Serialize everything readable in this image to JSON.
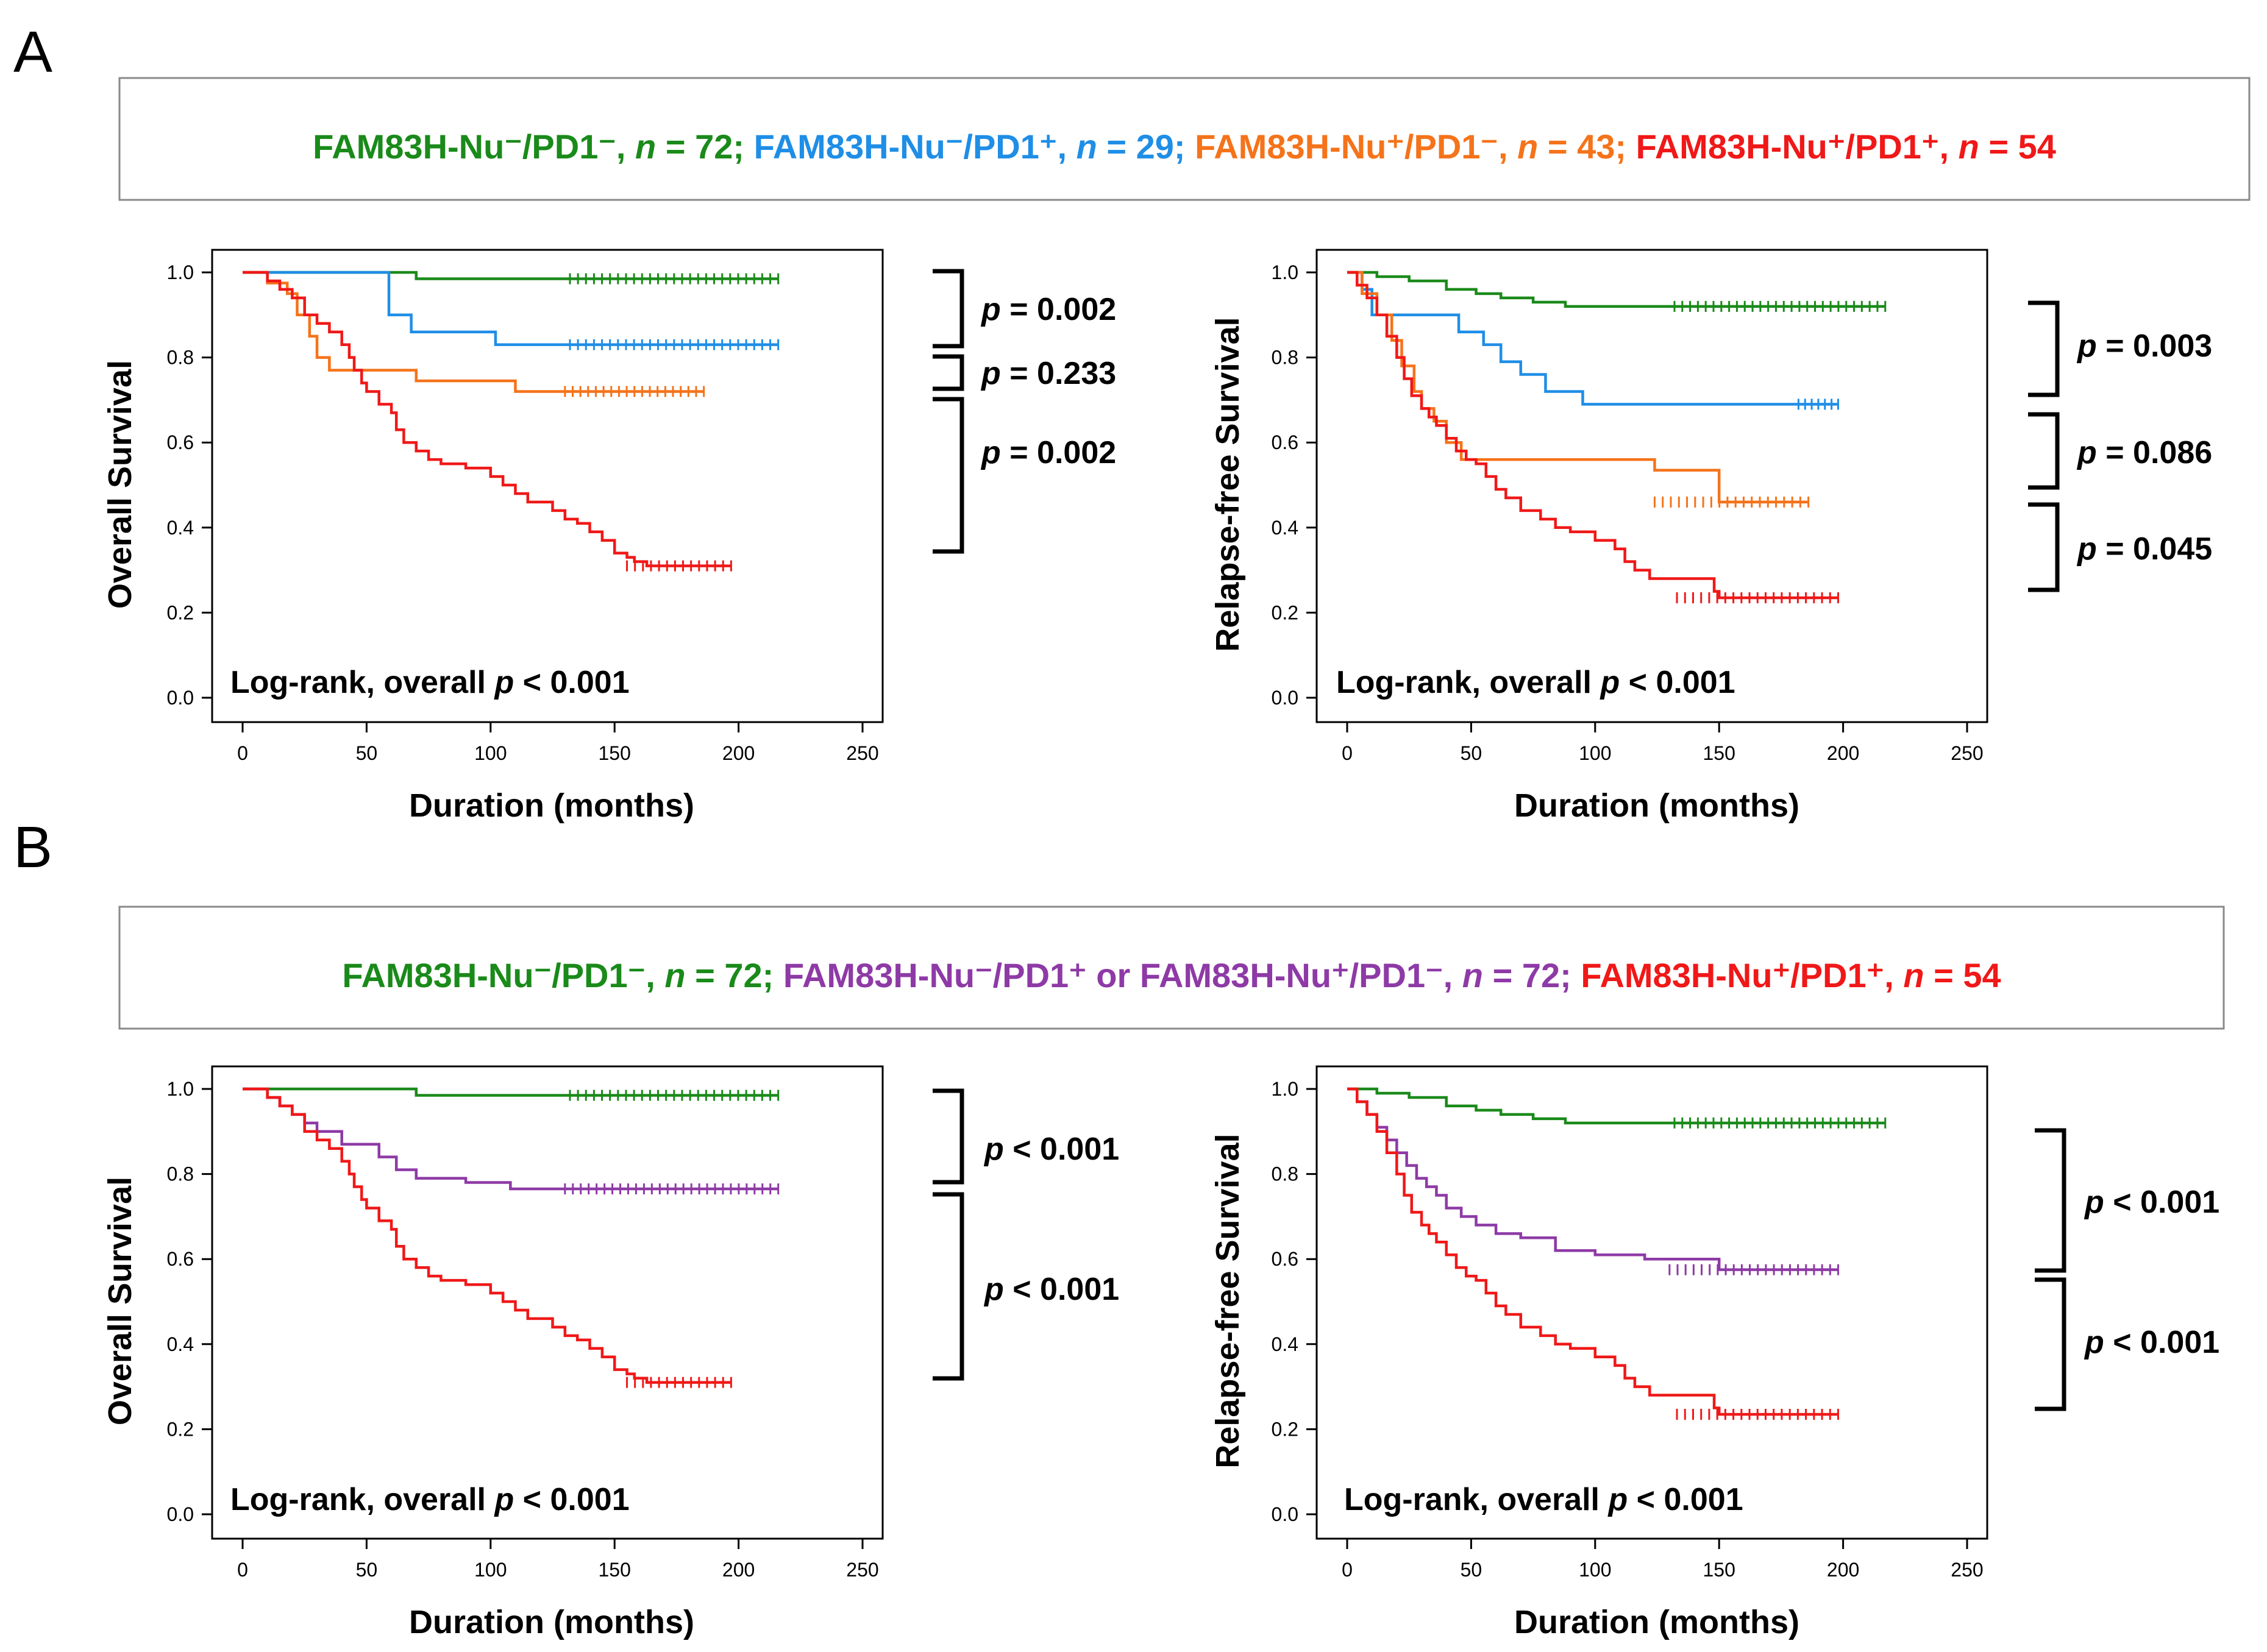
{
  "panels": [
    {
      "letter": "A",
      "legend": [
        {
          "label": "FAM83H-Nu⁻/PD1⁻, ",
          "n_label": "n",
          "n_value": " = 72; ",
          "color": "#1a8a1a"
        },
        {
          "label": "FAM83H-Nu⁻/PD1⁺, ",
          "n_label": "n",
          "n_value": " = 29; ",
          "color": "#1f8ee6"
        },
        {
          "label": "FAM83H-Nu⁺/PD1⁻, ",
          "n_label": "n",
          "n_value": " = 43; ",
          "color": "#f5731a"
        },
        {
          "label": "FAM83H-Nu⁺/PD1⁺, ",
          "n_label": "n",
          "n_value": " = 54",
          "color": "#f01818"
        }
      ],
      "plots": [
        {
          "ylabel": "Overall Survival",
          "xlabel": "Duration (months)",
          "logrank_prefix": "Log-rank, overall ",
          "logrank_p": "p",
          "logrank_value": " < 0.001",
          "pvals": [
            {
              "p": "p",
              "text": " = 0.002"
            },
            {
              "p": "p",
              "text": " = 0.233"
            },
            {
              "p": "p",
              "text": " = 0.002"
            }
          ]
        },
        {
          "ylabel": "Relapse-free Survival",
          "xlabel": "Duration (months)",
          "logrank_prefix": "Log-rank, overall ",
          "logrank_p": "p",
          "logrank_value": " < 0.001",
          "pvals": [
            {
              "p": "p",
              "text": " = 0.003"
            },
            {
              "p": "p",
              "text": " = 0.086"
            },
            {
              "p": "p",
              "text": " = 0.045"
            }
          ]
        }
      ]
    },
    {
      "letter": "B",
      "legend": [
        {
          "label": "FAM83H-Nu⁻/PD1⁻, ",
          "n_label": "n",
          "n_value": " = 72; ",
          "color": "#1a8a1a"
        },
        {
          "label": "FAM83H-Nu⁻/PD1⁺ or FAM83H-Nu⁺/PD1⁻, ",
          "n_label": "n",
          "n_value": " = 72; ",
          "color": "#8e3aa6"
        },
        {
          "label": "FAM83H-Nu⁺/PD1⁺, ",
          "n_label": "n",
          "n_value": " = 54",
          "color": "#f01818"
        }
      ],
      "plots": [
        {
          "ylabel": "Overall Survival",
          "xlabel": "Duration (months)",
          "logrank_prefix": "Log-rank, overall ",
          "logrank_p": "p",
          "logrank_value": " < 0.001",
          "pvals": [
            {
              "p": "p",
              "text": " < 0.001"
            },
            {
              "p": "p",
              "text": " < 0.001"
            }
          ]
        },
        {
          "ylabel": "Relapse-free Survival",
          "xlabel": "Duration (months)",
          "logrank_prefix": "Log-rank, overall ",
          "logrank_p": "p",
          "logrank_value": " < 0.001",
          "pvals": [
            {
              "p": "p",
              "text": " < 0.001"
            },
            {
              "p": "p",
              "text": " < 0.001"
            }
          ]
        }
      ]
    }
  ],
  "chart_data": [
    {
      "type": "line",
      "title": "A - Overall Survival",
      "xlabel": "Duration (months)",
      "ylabel": "Overall Survival",
      "xlim": [
        0,
        250
      ],
      "ylim": [
        0,
        1.0
      ],
      "xticks": [
        "0",
        "50",
        "100",
        "150",
        "200",
        "250"
      ],
      "yticks": [
        "0.0",
        "0.2",
        "0.4",
        "0.6",
        "0.8",
        "1.0"
      ],
      "series": [
        {
          "name": "FAM83H-Nu-/PD1-",
          "color": "#1a8a1a",
          "x": [
            0,
            70,
            216
          ],
          "y": [
            1.0,
            0.985,
            0.985
          ],
          "censor_from": 132
        },
        {
          "name": "FAM83H-Nu-/PD1+",
          "color": "#1f8ee6",
          "x": [
            0,
            59,
            68,
            102,
            216
          ],
          "y": [
            1.0,
            0.9,
            0.86,
            0.83,
            0.83
          ],
          "censor_from": 132
        },
        {
          "name": "FAM83H-Nu+/PD1-",
          "color": "#f5731a",
          "x": [
            0,
            10,
            18,
            22,
            27,
            30,
            35,
            50,
            70,
            110,
            186
          ],
          "y": [
            1.0,
            0.975,
            0.95,
            0.9,
            0.85,
            0.8,
            0.77,
            0.77,
            0.745,
            0.72,
            0.72
          ],
          "censor_from": 130
        },
        {
          "name": "FAM83H-Nu+/PD1+",
          "color": "#f01818",
          "x": [
            0,
            10,
            15,
            20,
            25,
            30,
            35,
            40,
            43,
            45,
            48,
            50,
            55,
            60,
            62,
            65,
            70,
            75,
            80,
            90,
            100,
            105,
            110,
            115,
            125,
            130,
            135,
            140,
            145,
            150,
            155,
            158,
            163,
            197
          ],
          "y": [
            1.0,
            0.98,
            0.96,
            0.94,
            0.9,
            0.88,
            0.86,
            0.83,
            0.8,
            0.77,
            0.74,
            0.72,
            0.69,
            0.67,
            0.63,
            0.6,
            0.58,
            0.56,
            0.55,
            0.54,
            0.52,
            0.5,
            0.48,
            0.46,
            0.44,
            0.42,
            0.41,
            0.39,
            0.37,
            0.34,
            0.33,
            0.32,
            0.31,
            0.31
          ],
          "censor_from": 155
        }
      ]
    },
    {
      "type": "line",
      "title": "A - Relapse-free Survival",
      "xlabel": "Duration (months)",
      "ylabel": "Relapse-free Survival",
      "xlim": [
        0,
        250
      ],
      "ylim": [
        0,
        1.0
      ],
      "xticks": [
        "0",
        "50",
        "100",
        "150",
        "200",
        "250"
      ],
      "yticks": [
        "0.0",
        "0.2",
        "0.4",
        "0.6",
        "0.8",
        "1.0"
      ],
      "series": [
        {
          "name": "FAM83H-Nu-/PD1-",
          "color": "#1a8a1a",
          "x": [
            0,
            12,
            25,
            40,
            52,
            62,
            75,
            88,
            100,
            217
          ],
          "y": [
            1.0,
            0.99,
            0.98,
            0.96,
            0.95,
            0.94,
            0.93,
            0.92,
            0.92,
            0.92
          ],
          "censor_from": 132
        },
        {
          "name": "FAM83H-Nu-/PD1+",
          "color": "#1f8ee6",
          "x": [
            0,
            6,
            10,
            30,
            45,
            55,
            62,
            70,
            80,
            95,
            198
          ],
          "y": [
            1.0,
            0.96,
            0.9,
            0.9,
            0.86,
            0.83,
            0.79,
            0.76,
            0.72,
            0.69,
            0.69
          ],
          "censor_from": 182
        },
        {
          "name": "FAM83H-Nu+/PD1-",
          "color": "#f5731a",
          "x": [
            0,
            6,
            12,
            18,
            22,
            27,
            30,
            35,
            40,
            46,
            50,
            124,
            150,
            186
          ],
          "y": [
            1.0,
            0.95,
            0.9,
            0.84,
            0.78,
            0.72,
            0.68,
            0.65,
            0.6,
            0.56,
            0.56,
            0.535,
            0.46,
            0.46
          ],
          "censor_from": 124
        },
        {
          "name": "FAM83H-Nu+/PD1+",
          "color": "#f01818",
          "x": [
            0,
            4,
            8,
            12,
            16,
            20,
            23,
            26,
            30,
            33,
            36,
            40,
            44,
            48,
            52,
            56,
            60,
            64,
            70,
            78,
            84,
            90,
            100,
            108,
            112,
            116,
            122,
            128,
            134,
            140,
            148,
            150,
            198
          ],
          "y": [
            1.0,
            0.97,
            0.94,
            0.9,
            0.85,
            0.8,
            0.75,
            0.71,
            0.68,
            0.66,
            0.64,
            0.61,
            0.58,
            0.56,
            0.55,
            0.52,
            0.49,
            0.47,
            0.44,
            0.42,
            0.4,
            0.39,
            0.37,
            0.35,
            0.32,
            0.3,
            0.28,
            0.28,
            0.28,
            0.28,
            0.25,
            0.235,
            0.235
          ],
          "censor_from": 133
        }
      ]
    },
    {
      "type": "line",
      "title": "B - Overall Survival",
      "xlabel": "Duration (months)",
      "ylabel": "Overall Survival",
      "xlim": [
        0,
        250
      ],
      "ylim": [
        0,
        1.0
      ],
      "xticks": [
        "0",
        "50",
        "100",
        "150",
        "200",
        "250"
      ],
      "yticks": [
        "0.0",
        "0.2",
        "0.4",
        "0.6",
        "0.8",
        "1.0"
      ],
      "series": [
        {
          "name": "FAM83H-Nu-/PD1-",
          "color": "#1a8a1a",
          "x": [
            0,
            70,
            216
          ],
          "y": [
            1.0,
            0.985,
            0.985
          ],
          "censor_from": 132
        },
        {
          "name": "FAM83H-Nu-/PD1+ or FAM83H-Nu+/PD1-",
          "color": "#8e3aa6",
          "x": [
            0,
            10,
            15,
            20,
            25,
            30,
            40,
            55,
            62,
            70,
            90,
            108,
            216
          ],
          "y": [
            1.0,
            0.98,
            0.96,
            0.94,
            0.92,
            0.9,
            0.87,
            0.84,
            0.81,
            0.79,
            0.78,
            0.765,
            0.765
          ],
          "censor_from": 130
        },
        {
          "name": "FAM83H-Nu+/PD1+",
          "color": "#f01818",
          "x": [
            0,
            10,
            15,
            20,
            25,
            30,
            35,
            40,
            43,
            45,
            48,
            50,
            55,
            60,
            62,
            65,
            70,
            75,
            80,
            90,
            100,
            105,
            110,
            115,
            125,
            130,
            135,
            140,
            145,
            150,
            155,
            158,
            163,
            197
          ],
          "y": [
            1.0,
            0.98,
            0.96,
            0.94,
            0.9,
            0.88,
            0.86,
            0.83,
            0.8,
            0.77,
            0.74,
            0.72,
            0.69,
            0.67,
            0.63,
            0.6,
            0.58,
            0.56,
            0.55,
            0.54,
            0.52,
            0.5,
            0.48,
            0.46,
            0.44,
            0.42,
            0.41,
            0.39,
            0.37,
            0.34,
            0.33,
            0.32,
            0.31,
            0.31
          ],
          "censor_from": 155
        }
      ]
    },
    {
      "type": "line",
      "title": "B - Relapse-free Survival",
      "xlabel": "Duration (months)",
      "ylabel": "Relapse-free Survival",
      "xlim": [
        0,
        250
      ],
      "ylim": [
        0,
        1.0
      ],
      "xticks": [
        "0",
        "50",
        "100",
        "150",
        "200",
        "250"
      ],
      "yticks": [
        "0.0",
        "0.2",
        "0.4",
        "0.6",
        "0.8",
        "1.0"
      ],
      "series": [
        {
          "name": "FAM83H-Nu-/PD1-",
          "color": "#1a8a1a",
          "x": [
            0,
            12,
            25,
            40,
            52,
            62,
            75,
            88,
            100,
            217
          ],
          "y": [
            1.0,
            0.99,
            0.98,
            0.96,
            0.95,
            0.94,
            0.93,
            0.92,
            0.92,
            0.92
          ],
          "censor_from": 132
        },
        {
          "name": "FAM83H-Nu-/PD1+ or FAM83H-Nu+/PD1-",
          "color": "#8e3aa6",
          "x": [
            0,
            4,
            8,
            12,
            16,
            20,
            24,
            28,
            32,
            36,
            40,
            46,
            52,
            60,
            70,
            84,
            100,
            120,
            150,
            198
          ],
          "y": [
            1.0,
            0.97,
            0.94,
            0.91,
            0.88,
            0.85,
            0.82,
            0.79,
            0.77,
            0.75,
            0.72,
            0.7,
            0.68,
            0.66,
            0.65,
            0.62,
            0.61,
            0.6,
            0.575,
            0.575
          ],
          "censor_from": 130
        },
        {
          "name": "FAM83H-Nu+/PD1+",
          "color": "#f01818",
          "x": [
            0,
            4,
            8,
            12,
            16,
            20,
            23,
            26,
            30,
            33,
            36,
            40,
            44,
            48,
            52,
            56,
            60,
            64,
            70,
            78,
            84,
            90,
            100,
            108,
            112,
            116,
            122,
            128,
            134,
            140,
            148,
            150,
            198
          ],
          "y": [
            1.0,
            0.97,
            0.94,
            0.9,
            0.85,
            0.8,
            0.75,
            0.71,
            0.68,
            0.66,
            0.64,
            0.61,
            0.58,
            0.56,
            0.55,
            0.52,
            0.49,
            0.47,
            0.44,
            0.42,
            0.4,
            0.39,
            0.37,
            0.35,
            0.32,
            0.3,
            0.28,
            0.28,
            0.28,
            0.28,
            0.25,
            0.235,
            0.235
          ],
          "censor_from": 133
        }
      ]
    }
  ]
}
